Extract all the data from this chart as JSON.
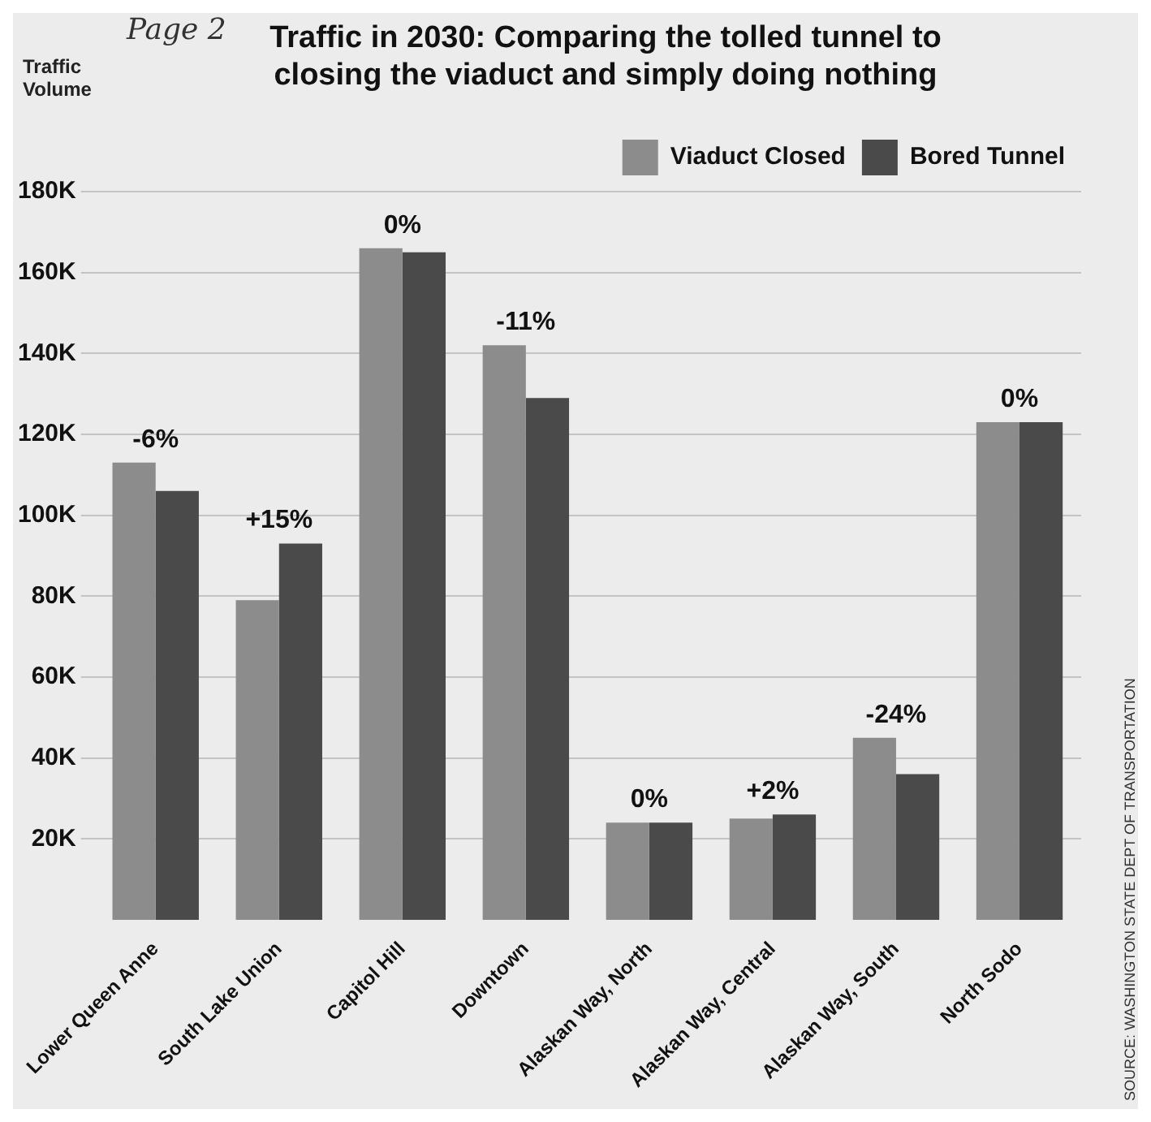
{
  "chart_data": {
    "type": "bar",
    "title": "Traffic in 2030: Comparing the tolled tunnel to closing the viaduct and simply doing nothing",
    "ylabel": "Traffic Volume",
    "categories": [
      "Lower Queen Anne",
      "South Lake Union",
      "Capitol Hill",
      "Downtown",
      "Alaskan Way, North",
      "Alaskan Way, Central",
      "Alaskan Way, South",
      "North Sodo"
    ],
    "series": [
      {
        "name": "Viaduct Closed",
        "color": "#8c8c8c",
        "values": [
          113000,
          79000,
          166000,
          142000,
          24000,
          25000,
          45000,
          123000
        ]
      },
      {
        "name": "Bored Tunnel",
        "color": "#4a4a4a",
        "values": [
          106000,
          93000,
          165000,
          129000,
          24000,
          26000,
          36000,
          123000
        ]
      }
    ],
    "ylim": [
      0,
      180000
    ],
    "yticks": [
      {
        "value": 20000,
        "label": "20K"
      },
      {
        "value": 40000,
        "label": "40K"
      },
      {
        "value": 60000,
        "label": "60K"
      },
      {
        "value": 80000,
        "label": "80K"
      },
      {
        "value": 100000,
        "label": "100K"
      },
      {
        "value": 120000,
        "label": "120K"
      },
      {
        "value": 140000,
        "label": "140K"
      },
      {
        "value": 160000,
        "label": "160K"
      },
      {
        "value": 180000,
        "label": "180K"
      }
    ],
    "grid": "y",
    "legend": "top right",
    "annotations": [
      "Page 2",
      "SOURCE: WASHINGTON STATE DEPT OF TRANSPORTATION",
      {
        "text": "-6%",
        "x": "Lower Queen Anne",
        "y": 113000
      },
      {
        "text": "+15%",
        "x": "South Lake Union",
        "y": 93000
      },
      {
        "text": "0%",
        "x": "Capitol Hill",
        "y": 166000
      },
      {
        "text": "-11%",
        "x": "Downtown",
        "y": 142000
      },
      {
        "text": "0%",
        "x": "Alaskan Way, North",
        "y": 24000
      },
      {
        "text": "+2%",
        "x": "Alaskan Way, Central",
        "y": 26000
      },
      {
        "text": "-24%",
        "x": "Alaskan Way, South",
        "y": 45000
      },
      {
        "text": "0%",
        "x": "North Sodo",
        "y": 123000
      }
    ]
  }
}
